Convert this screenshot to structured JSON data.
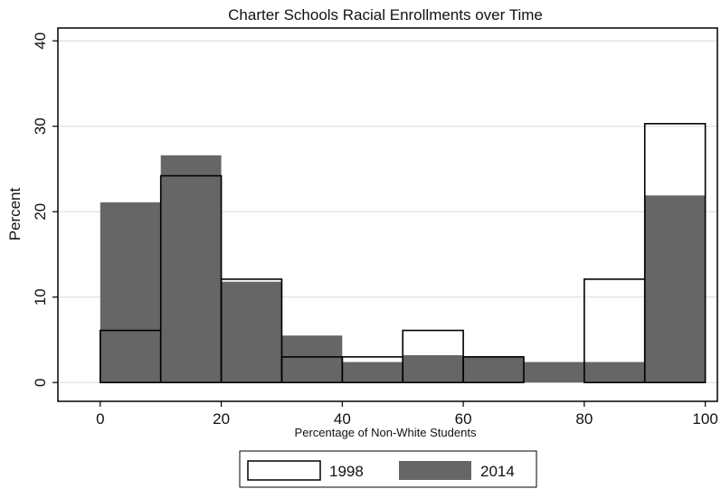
{
  "chart_data": {
    "type": "bar",
    "title": "Charter Schools Racial Enrollments over Time",
    "xlabel": "Percentage of Non-White Students",
    "ylabel": "Percent",
    "xlim": [
      -7,
      102
    ],
    "ylim": [
      -2.2,
      41.5
    ],
    "xticks": [
      0,
      20,
      40,
      60,
      80,
      100
    ],
    "yticks": [
      0,
      10,
      20,
      30,
      40
    ],
    "bin_edges": [
      0,
      10,
      20,
      30,
      40,
      50,
      60,
      70,
      80,
      90,
      100
    ],
    "grid": true,
    "legend_position": "bottom",
    "series": [
      {
        "name": "2014",
        "style": "filled",
        "color": "#666666",
        "values": [
          21.1,
          26.6,
          11.8,
          5.5,
          2.4,
          3.2,
          3.1,
          2.4,
          2.4,
          21.9
        ]
      },
      {
        "name": "1998",
        "style": "outline",
        "color": "#000000",
        "values": [
          6.1,
          24.2,
          12.1,
          3.0,
          3.0,
          6.1,
          3.0,
          0.0,
          12.1,
          30.3
        ]
      }
    ]
  }
}
